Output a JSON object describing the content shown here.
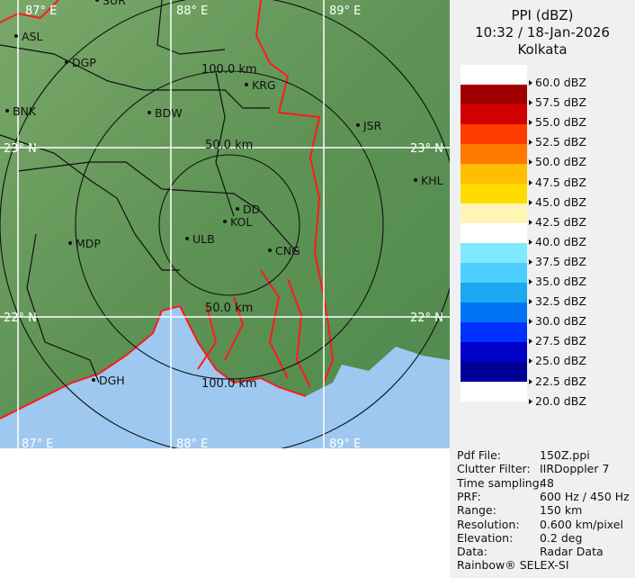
{
  "map": {
    "grid_labels": {
      "lon": [
        "87° E",
        "88° E",
        "89° E"
      ],
      "lat": [
        "23° N",
        "22° N"
      ]
    },
    "ring_labels": [
      "50.0 km",
      "100.0 km",
      "50.0 km",
      "100.0 km"
    ],
    "places": [
      "SUR",
      "ASL",
      "DGP",
      "BNK",
      "BDW",
      "KRG",
      "JSR",
      "KHL",
      "DD",
      "KOL",
      "ULB",
      "CNG",
      "MDP",
      "DGH"
    ],
    "colors": {
      "land": "#6a9a5c",
      "sea": "#9ec8f0",
      "border_international": "#ff1a1a",
      "border_state": "#111111",
      "grid": "#ffffff"
    }
  },
  "panel": {
    "title": "PPI (dBZ)",
    "datetime": "10:32 / 18-Jan-2026",
    "station": "Kolkata",
    "scale": [
      {
        "label": "60.0 dBZ",
        "color": "#ffffff"
      },
      {
        "label": "57.5 dBZ",
        "color": "#a00000"
      },
      {
        "label": "55.0 dBZ",
        "color": "#d20000"
      },
      {
        "label": "52.5 dBZ",
        "color": "#ff3c00"
      },
      {
        "label": "50.0 dBZ",
        "color": "#ff7800"
      },
      {
        "label": "47.5 dBZ",
        "color": "#ffbe00"
      },
      {
        "label": "45.0 dBZ",
        "color": "#ffdc00"
      },
      {
        "label": "42.5 dBZ",
        "color": "#fff5b4"
      },
      {
        "label": "40.0 dBZ",
        "color": "#ffffff"
      },
      {
        "label": "37.5 dBZ",
        "color": "#80e8ff"
      },
      {
        "label": "35.0 dBZ",
        "color": "#4ccfff"
      },
      {
        "label": "32.5 dBZ",
        "color": "#1aa8f0"
      },
      {
        "label": "30.0 dBZ",
        "color": "#0073f5"
      },
      {
        "label": "27.5 dBZ",
        "color": "#0032ff"
      },
      {
        "label": "25.0 dBZ",
        "color": "#0000c8"
      },
      {
        "label": "22.5 dBZ",
        "color": "#000096"
      },
      {
        "label": "20.0 dBZ",
        "color": "#ffffff"
      }
    ],
    "info": [
      {
        "k": "Pdf File:",
        "v": "150Z.ppi"
      },
      {
        "k": "Clutter Filter:",
        "v": "IIRDoppler 7"
      },
      {
        "k": "Time sampling:",
        "v": "48"
      },
      {
        "k": "PRF:",
        "v": "600 Hz / 450 Hz"
      },
      {
        "k": "Range:",
        "v": "150 km"
      },
      {
        "k": "Resolution:",
        "v": "0.600 km/pixel"
      },
      {
        "k": "Elevation:",
        "v": "0.2 deg"
      },
      {
        "k": "Data:",
        "v": "Radar Data"
      }
    ],
    "footer": "Rainbow® SELEX-SI"
  }
}
